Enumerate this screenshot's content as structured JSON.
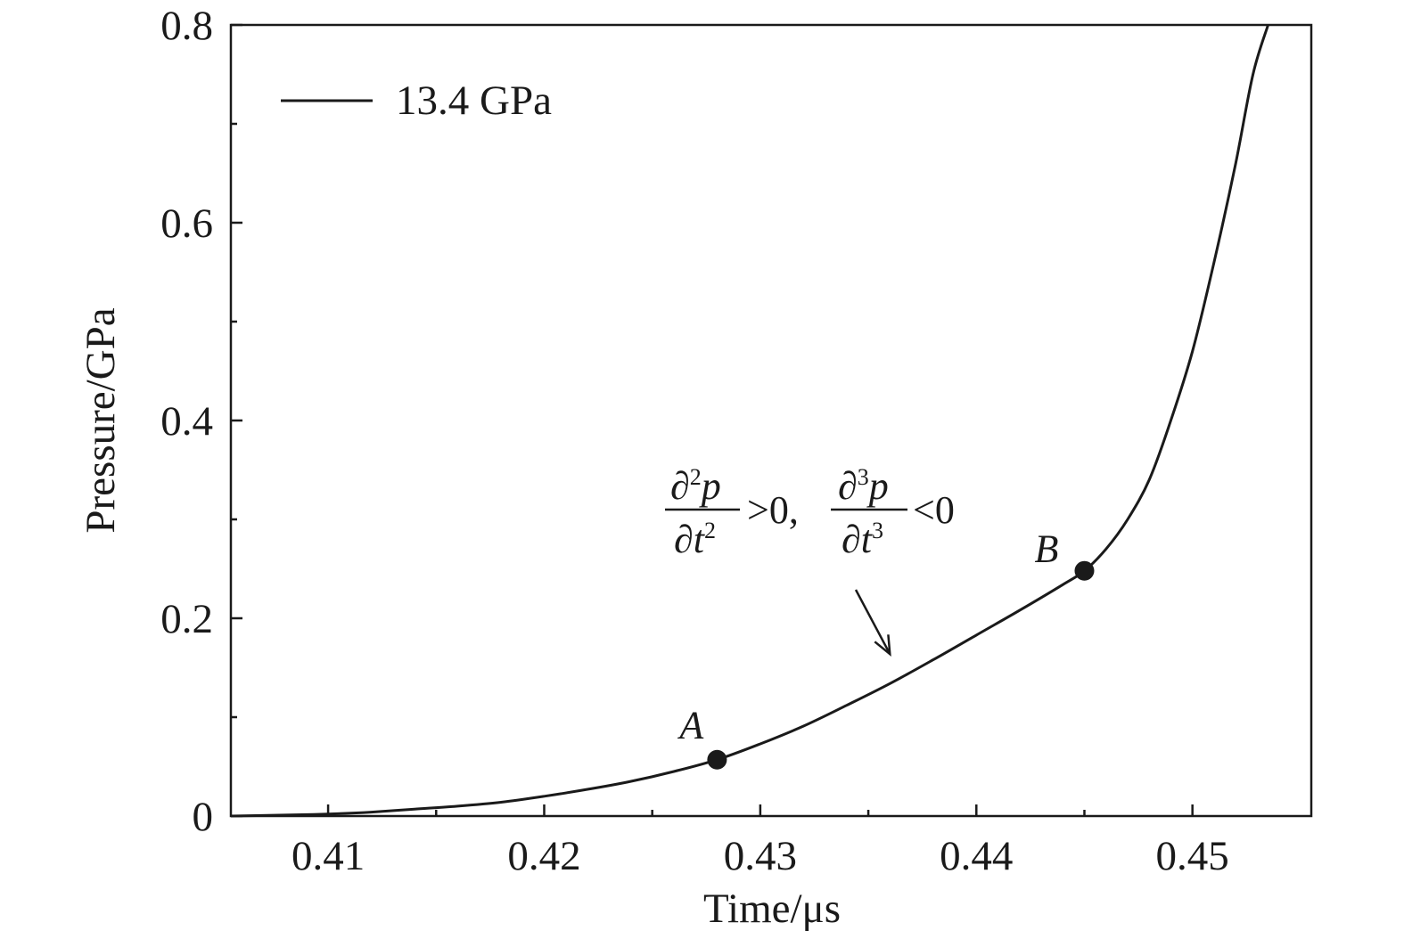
{
  "chart_data": {
    "type": "line",
    "title": "",
    "xlabel": "Time/μs",
    "ylabel": "Pressure/GPa",
    "xlim": [
      0.4055,
      0.4555
    ],
    "ylim": [
      0,
      0.8
    ],
    "x_ticks": [
      0.41,
      0.42,
      0.43,
      0.44,
      0.45
    ],
    "x_tick_labels": [
      "0.41",
      "0.42",
      "0.43",
      "0.44",
      "0.45"
    ],
    "x_minor_ticks": [
      0.415,
      0.425,
      0.435,
      0.445
    ],
    "y_ticks": [
      0,
      0.2,
      0.4,
      0.6,
      0.8
    ],
    "y_tick_labels": [
      "0",
      "0.2",
      "0.4",
      "0.6",
      "0.8"
    ],
    "y_minor_ticks": [
      0.1,
      0.3,
      0.5,
      0.7
    ],
    "grid": false,
    "legend": {
      "position": "top-left",
      "entries": [
        "13.4 GPa"
      ]
    },
    "series": [
      {
        "name": "13.4 GPa",
        "color": "#1a1a1a",
        "x": [
          0.4055,
          0.408,
          0.41,
          0.412,
          0.414,
          0.416,
          0.418,
          0.42,
          0.422,
          0.424,
          0.426,
          0.428,
          0.43,
          0.432,
          0.434,
          0.436,
          0.438,
          0.44,
          0.442,
          0.444,
          0.445,
          0.446,
          0.447,
          0.448,
          0.449,
          0.45,
          0.451,
          0.452,
          0.4528,
          0.4535
        ],
        "y": [
          0.0,
          0.001,
          0.002,
          0.004,
          0.007,
          0.01,
          0.014,
          0.02,
          0.027,
          0.035,
          0.045,
          0.057,
          0.073,
          0.091,
          0.112,
          0.134,
          0.158,
          0.183,
          0.208,
          0.234,
          0.248,
          0.27,
          0.3,
          0.34,
          0.4,
          0.47,
          0.56,
          0.66,
          0.75,
          0.8
        ]
      }
    ],
    "points": [
      {
        "label": "A",
        "x": 0.428,
        "y": 0.057
      },
      {
        "label": "B",
        "x": 0.445,
        "y": 0.248
      }
    ],
    "annotation": {
      "d2_num_d": "∂",
      "d2_num_sup": "2",
      "d2_num_var": "p",
      "d2_den_d": "∂",
      "d2_den_var": "t",
      "d2_den_sup": "2",
      "cond1": ">0,",
      "d3_num_d": "∂",
      "d3_num_sup": "3",
      "d3_num_var": "p",
      "d3_den_d": "∂",
      "d3_den_var": "t",
      "d3_den_sup": "3",
      "cond2": "<0",
      "arrow_target": {
        "x": 0.436,
        "y": 0.153
      }
    }
  }
}
